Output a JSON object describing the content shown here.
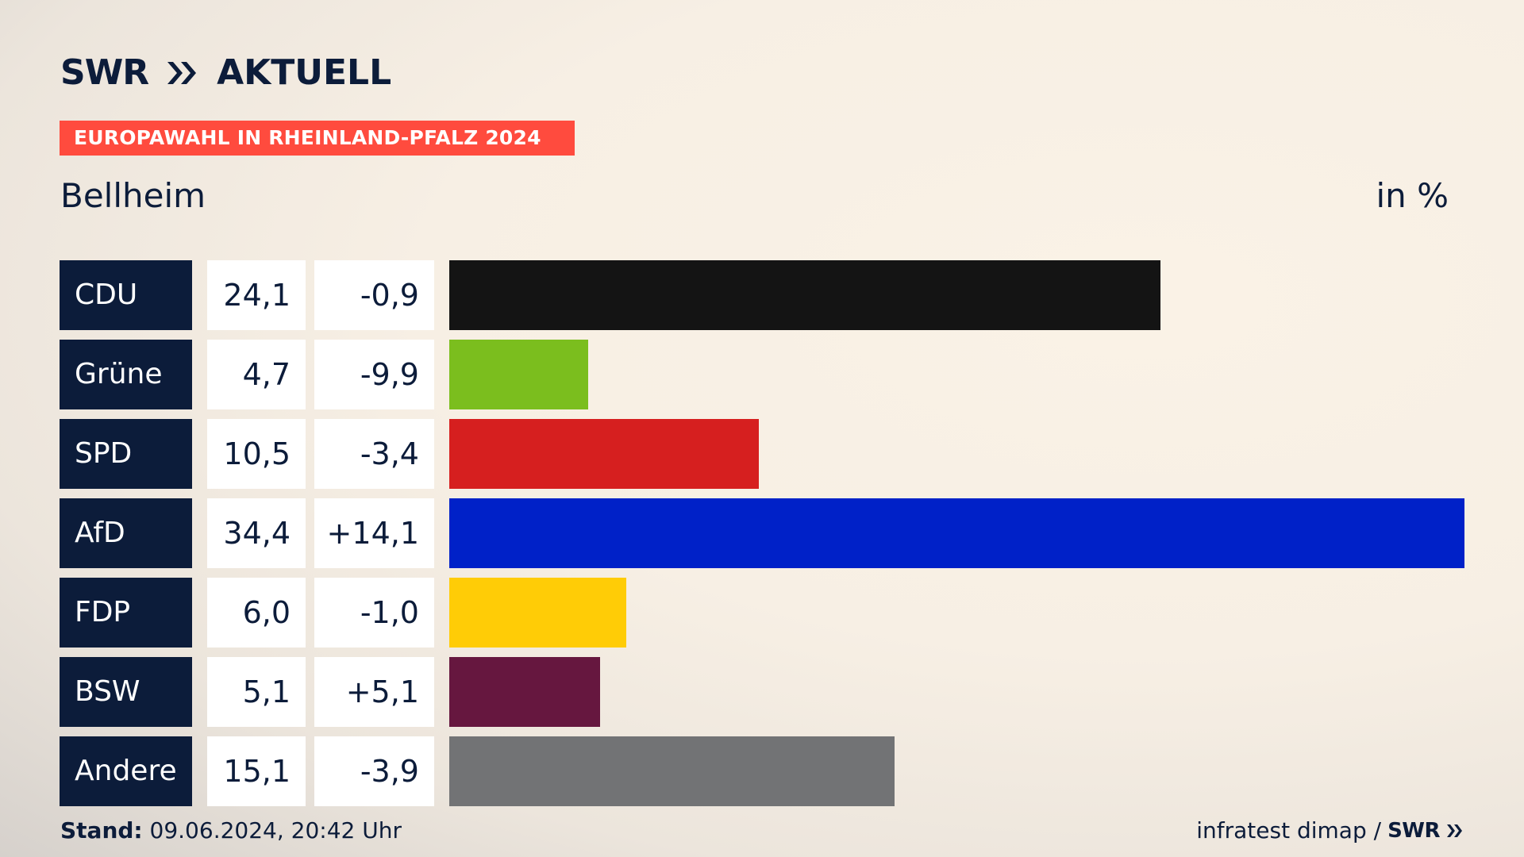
{
  "brand": {
    "logo_swr": "SWR",
    "logo_aktuell": "AKTUELL"
  },
  "banner": "EUROPAWAHL IN RHEINLAND-PFALZ 2024",
  "place": "Bellheim",
  "unit": "in %",
  "footer": {
    "stand_label": "Stand:",
    "stand_value": "09.06.2024, 20:42 Uhr",
    "source": "infratest dimap /",
    "source_brand": "SWR"
  },
  "chart_data": {
    "type": "bar",
    "orientation": "horizontal",
    "categories": [
      "CDU",
      "Grüne",
      "SPD",
      "AfD",
      "FDP",
      "BSW",
      "Andere"
    ],
    "values": [
      24.1,
      4.7,
      10.5,
      34.4,
      6.0,
      5.1,
      15.1
    ],
    "value_labels": [
      "24,1",
      "4,7",
      "10,5",
      "34,4",
      "6,0",
      "5,1",
      "15,1"
    ],
    "changes": [
      -0.9,
      -9.9,
      -3.4,
      14.1,
      -1.0,
      5.1,
      -3.9
    ],
    "change_labels": [
      "-0,9",
      "-9,9",
      "-3,4",
      "+14,1",
      "-1,0",
      "+5,1",
      "-3,9"
    ],
    "colors": [
      "#141414",
      "#7bbe1e",
      "#d61f1f",
      "#0021c8",
      "#ffcc06",
      "#66173f",
      "#727375"
    ],
    "title": "",
    "xlabel": "",
    "ylabel": "",
    "xlim": [
      0,
      34.4
    ]
  }
}
